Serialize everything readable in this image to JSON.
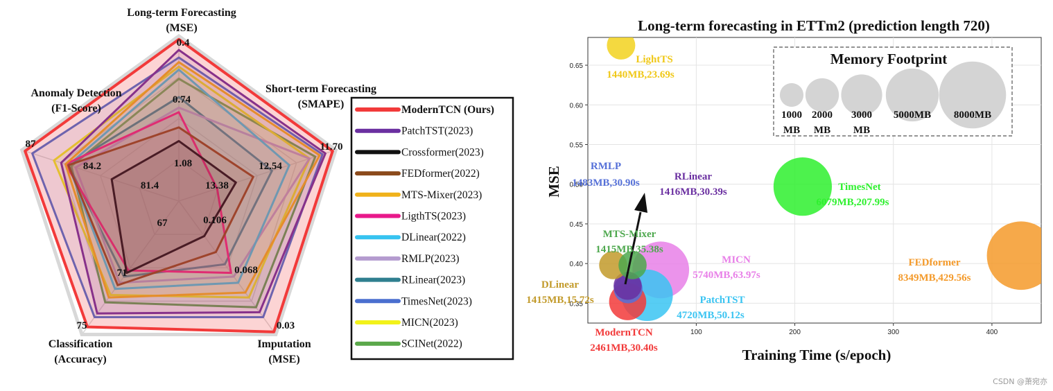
{
  "chart_data": [
    {
      "type": "radar",
      "axes": [
        {
          "title": [
            "Long-term Forecasting",
            "(MSE)"
          ],
          "ticks": [
            "0.4",
            "0.74",
            "1.08"
          ]
        },
        {
          "title": [
            "Short-term Forecasting",
            "(SMAPE)"
          ],
          "ticks": [
            "11.70",
            "12.54",
            "13.38"
          ]
        },
        {
          "title": [
            "Imputation",
            "(MSE)"
          ],
          "ticks": [
            "0.03",
            "0.068",
            "0.106"
          ]
        },
        {
          "title": [
            "Classification",
            "(Accuracy)"
          ],
          "ticks": [
            "75",
            "71",
            "67"
          ]
        },
        {
          "title": [
            "Anomaly Detection",
            "(F1-Score)"
          ],
          "ticks": [
            "87",
            "84.2",
            "81.4"
          ]
        }
      ],
      "note": "normalized scores per axis, 1.0 = best (outer ring)",
      "series": [
        {
          "name": "ModernTCN (Ours)",
          "color": "#f23a3a",
          "bold": true,
          "values": [
            1.0,
            1.0,
            1.0,
            0.96,
            1.0
          ]
        },
        {
          "name": "PatchTST(2023)",
          "color": "#6a2fa0",
          "bold": false,
          "values": [
            0.93,
            0.95,
            0.84,
            0.85,
            0.75
          ]
        },
        {
          "name": "Crossformer(2023)",
          "color": "#111111",
          "bold": false,
          "values": [
            0.33,
            0.33,
            0.22,
            0.52,
            0.4
          ]
        },
        {
          "name": "FEDformer(2022)",
          "color": "#8b4a1b",
          "bold": false,
          "values": [
            0.42,
            0.45,
            0.35,
            0.62,
            0.7
          ]
        },
        {
          "name": "MTS-Mixer(2023)",
          "color": "#f0b21b",
          "bold": false,
          "values": [
            0.85,
            0.91,
            0.68,
            0.72,
            0.72
          ]
        },
        {
          "name": "LigthTS(2023)",
          "color": "#e8198b",
          "bold": false,
          "values": [
            0.52,
            0.2,
            0.52,
            0.5,
            0.72
          ]
        },
        {
          "name": "DLinear(2022)",
          "color": "#36c3f0",
          "bold": false,
          "values": [
            0.8,
            0.7,
            0.6,
            0.65,
            0.7
          ]
        },
        {
          "name": "RMLP(2023)",
          "color": "#b49bcf",
          "bold": false,
          "values": [
            0.55,
            0.84,
            0.55,
            0.6,
            0.65
          ]
        },
        {
          "name": "RLinear(2023)",
          "color": "#2f7f8f",
          "bold": false,
          "values": [
            0.62,
            0.58,
            0.45,
            0.55,
            0.7
          ]
        },
        {
          "name": "TimesNet(2023)",
          "color": "#4a6fcf",
          "bold": false,
          "values": [
            0.88,
            0.93,
            0.88,
            0.88,
            0.95
          ]
        },
        {
          "name": "MICN(2023)",
          "color": "#f2f21a",
          "bold": false,
          "values": [
            0.82,
            0.84,
            0.72,
            0.7,
            0.8
          ]
        },
        {
          "name": "SCINet(2022)",
          "color": "#5aa84a",
          "bold": false,
          "values": [
            0.74,
            0.88,
            0.8,
            0.76,
            0.68
          ]
        }
      ]
    },
    {
      "type": "scatter",
      "subtype": "bubble",
      "title": "Long-term forecasting in ETTm2 (prediction length 720)",
      "xlabel": "Training Time (s/epoch)",
      "ylabel": "MSE",
      "xlim": [
        -10,
        450
      ],
      "ylim": [
        0.325,
        0.685
      ],
      "xticks": [
        100,
        200,
        300,
        400
      ],
      "yticks": [
        0.35,
        0.4,
        0.45,
        0.5,
        0.55,
        0.6,
        0.65
      ],
      "points": [
        {
          "name": "ModernTCN",
          "detail": "2461MB,30.40s",
          "x": 30.4,
          "y": 0.352,
          "memory_mb": 2461,
          "color": "#f23a3a"
        },
        {
          "name": "PatchTST",
          "detail": "4720MB,50.12s",
          "x": 50.12,
          "y": 0.36,
          "memory_mb": 4720,
          "color": "#3ac4f2"
        },
        {
          "name": "DLinear",
          "detail": "1415MB,15.72s",
          "x": 15.72,
          "y": 0.398,
          "memory_mb": 1415,
          "color": "#c29a2a"
        },
        {
          "name": "MTS-Mixer",
          "detail": "1415MB,35.38s",
          "x": 35.38,
          "y": 0.398,
          "memory_mb": 1415,
          "color": "#4ea84e"
        },
        {
          "name": "RLinear",
          "detail": "1416MB,30.39s",
          "x": 30.39,
          "y": 0.372,
          "memory_mb": 1416,
          "color": "#6a2fa0"
        },
        {
          "name": "RMLP",
          "detail": "1483MB,30.90s",
          "x": 30.9,
          "y": 0.368,
          "memory_mb": 1483,
          "color": "#5570d8"
        },
        {
          "name": "MICN",
          "detail": "5740MB,63.97s",
          "x": 63.97,
          "y": 0.392,
          "memory_mb": 5740,
          "color": "#e880e8"
        },
        {
          "name": "TimesNet",
          "detail": "6079MB,207.99s",
          "x": 207.99,
          "y": 0.497,
          "memory_mb": 6079,
          "color": "#2ef02e"
        },
        {
          "name": "FEDformer",
          "detail": "8349MB,429.56s",
          "x": 429.56,
          "y": 0.41,
          "memory_mb": 8349,
          "color": "#f49a2a"
        },
        {
          "name": "LightTS",
          "detail": "1440MB,23.69s",
          "x": 23.69,
          "y": 0.675,
          "memory_mb": 1440,
          "color": "#f2d21e"
        }
      ],
      "memory_legend": {
        "title": "Memory Footprint",
        "items": [
          {
            "label": [
              "1000",
              "MB"
            ],
            "mb": 1000
          },
          {
            "label": [
              "2000",
              "MB"
            ],
            "mb": 2000
          },
          {
            "label": [
              "3000",
              "MB"
            ],
            "mb": 3000
          },
          {
            "label": [
              "5000MB"
            ],
            "mb": 5000
          },
          {
            "label": [
              "8000MB"
            ],
            "mb": 8000
          }
        ]
      }
    }
  ],
  "watermark": "CSDN @萧宛亦"
}
